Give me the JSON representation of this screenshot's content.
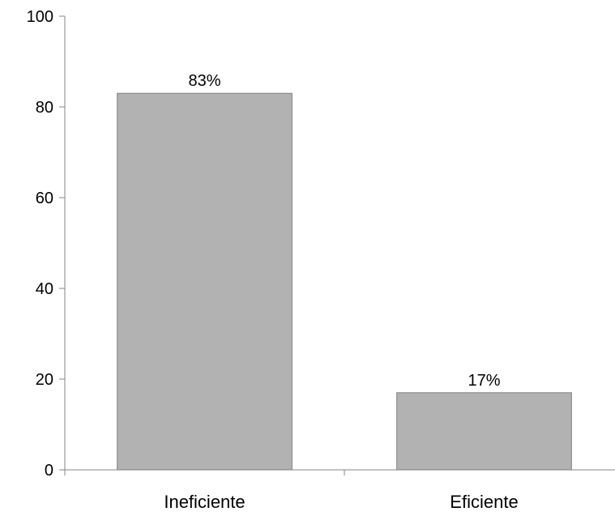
{
  "chart_data": {
    "type": "bar",
    "categories": [
      "Ineficiente",
      "Eficiente"
    ],
    "values": [
      83,
      17
    ],
    "data_labels": [
      "83%",
      "17%"
    ],
    "title": "",
    "xlabel": "",
    "ylabel": "",
    "ylim": [
      0,
      100
    ],
    "yticks": [
      0,
      20,
      40,
      60,
      80,
      100
    ],
    "ytick_labels": [
      "0",
      "20",
      "40",
      "60",
      "80",
      "100"
    ],
    "grid": false,
    "legend": "none",
    "bar_color": "#b2b2b2",
    "bar_edge_color": "#7f7f7f",
    "axis_color": "#868686"
  }
}
